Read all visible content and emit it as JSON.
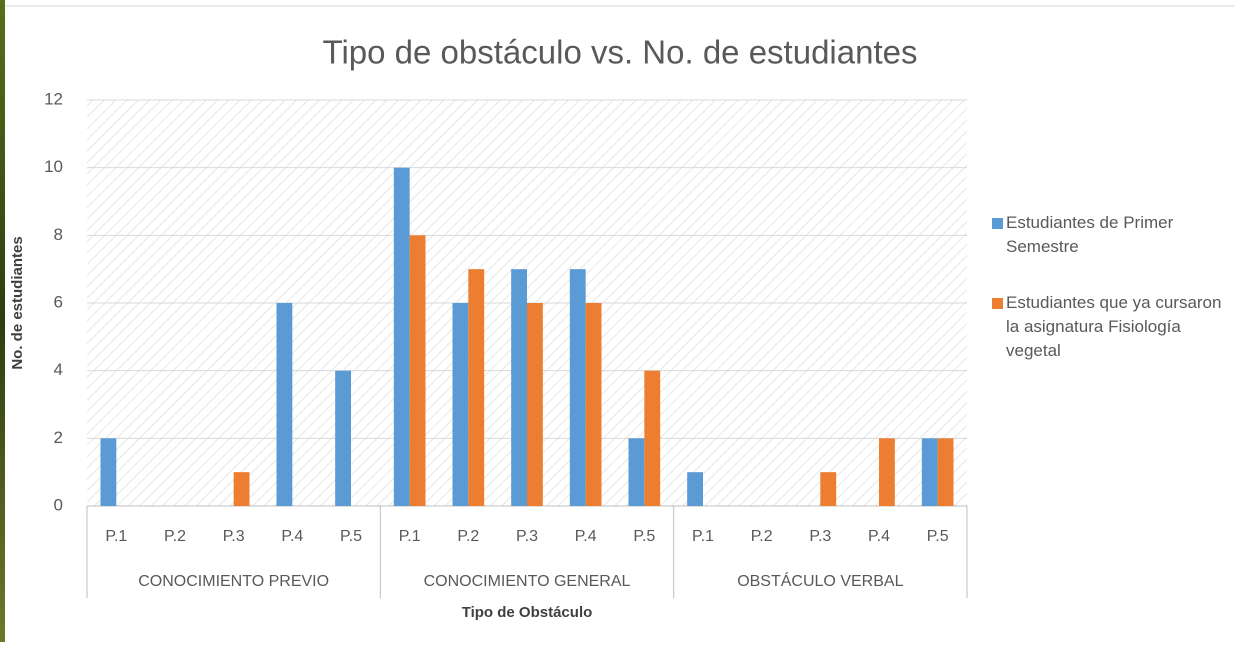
{
  "chart_data": {
    "type": "bar",
    "title": "Tipo de obstáculo vs. No. de estudiantes",
    "x_label": "Tipo de  Obstáculo",
    "y_label": "No. de estudiantes",
    "groups": [
      {
        "name": "CONOCIMIENTO PREVIO",
        "categories": [
          "P.1",
          "P.2",
          "P.3",
          "P.4",
          "P.5"
        ]
      },
      {
        "name": "CONOCIMIENTO GENERAL",
        "categories": [
          "P.1",
          "P.2",
          "P.3",
          "P.4",
          "P.5"
        ]
      },
      {
        "name": "OBSTÁCULO VERBAL",
        "categories": [
          "P.1",
          "P.2",
          "P.3",
          "P.4",
          "P.5"
        ]
      }
    ],
    "series": [
      {
        "name": "Estudiantes de Primer Semestre",
        "color": "#5b9bd5",
        "values": [
          2,
          0,
          0,
          6,
          4,
          10,
          6,
          7,
          7,
          2,
          1,
          0,
          0,
          0,
          2
        ]
      },
      {
        "name": "Estudiantes que ya cursaron la asignatura Fisiología vegetal",
        "color": "#ed7d31",
        "values": [
          0,
          0,
          1,
          0,
          0,
          8,
          7,
          6,
          6,
          4,
          0,
          0,
          1,
          2,
          2
        ]
      }
    ],
    "ylim": [
      0,
      12
    ],
    "yticks": [
      0,
      2,
      4,
      6,
      8,
      10,
      12
    ],
    "grid": true,
    "legend": "right"
  }
}
